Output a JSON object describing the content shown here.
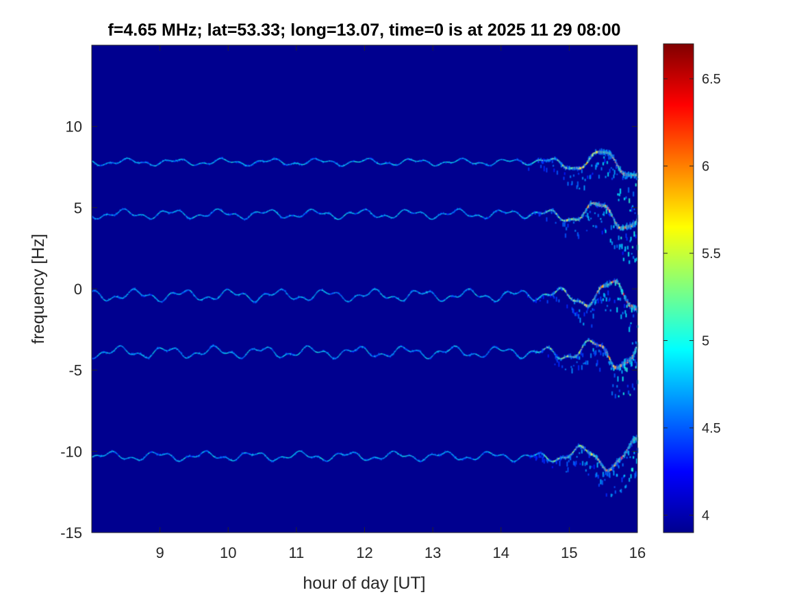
{
  "chart_data": {
    "type": "heatmap",
    "title": "f=4.65 MHz;  lat=53.33; long=13.07, time=0 is at 2025 11 29 08:00",
    "xlabel": "hour of day [UT]",
    "ylabel": "frequency [Hz]",
    "xlim": [
      8.0,
      16.0
    ],
    "ylim": [
      -15,
      15
    ],
    "x_ticks": [
      "9",
      "10",
      "11",
      "12",
      "13",
      "14",
      "15",
      "16"
    ],
    "x_tick_values": [
      9,
      10,
      11,
      12,
      13,
      14,
      15,
      16
    ],
    "y_ticks": [
      "10",
      "5",
      "0",
      "-5",
      "-10",
      "-15"
    ],
    "y_tick_values": [
      10,
      5,
      0,
      -5,
      -10,
      -15
    ],
    "colorbar": {
      "colormap": "jet",
      "range": [
        3.9,
        6.7
      ],
      "ticks": [
        "6.5",
        "6",
        "5.5",
        "5",
        "4.5",
        "4"
      ],
      "tick_values": [
        6.5,
        6,
        5.5,
        5,
        4.5,
        4
      ]
    },
    "background_color": "#00008f",
    "series": [
      {
        "center_hz": 7.8,
        "peak": 6.5,
        "wander_hz": 0.15,
        "spread_start": 14.2
      },
      {
        "center_hz": 4.6,
        "peak": 6.6,
        "wander_hz": 0.2,
        "spread_start": 14.2
      },
      {
        "center_hz": -0.4,
        "peak": 6.7,
        "wander_hz": 0.25,
        "spread_start": 14.3
      },
      {
        "center_hz": -3.9,
        "peak": 6.7,
        "wander_hz": 0.25,
        "spread_start": 14.3
      },
      {
        "center_hz": -10.3,
        "peak": 6.6,
        "wander_hz": 0.2,
        "spread_start": 14.3
      }
    ]
  }
}
